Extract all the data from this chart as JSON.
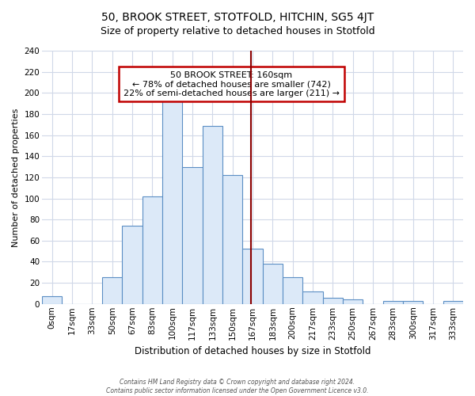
{
  "title": "50, BROOK STREET, STOTFOLD, HITCHIN, SG5 4JT",
  "subtitle": "Size of property relative to detached houses in Stotfold",
  "xlabel": "Distribution of detached houses by size in Stotfold",
  "ylabel": "Number of detached properties",
  "bar_labels": [
    "0sqm",
    "17sqm",
    "33sqm",
    "50sqm",
    "67sqm",
    "83sqm",
    "100sqm",
    "117sqm",
    "133sqm",
    "150sqm",
    "167sqm",
    "183sqm",
    "200sqm",
    "217sqm",
    "233sqm",
    "250sqm",
    "267sqm",
    "283sqm",
    "300sqm",
    "317sqm",
    "333sqm"
  ],
  "bar_values": [
    7,
    0,
    0,
    25,
    74,
    102,
    194,
    130,
    169,
    122,
    52,
    38,
    25,
    12,
    6,
    4,
    0,
    3,
    3,
    0,
    3
  ],
  "bar_color": "#dce9f8",
  "bar_edge_color": "#5b8ec4",
  "vline_color": "#8b0000",
  "vline_x": 9.93,
  "annotation_title": "50 BROOK STREET: 160sqm",
  "annotation_line1": "← 78% of detached houses are smaller (742)",
  "annotation_line2": "22% of semi-detached houses are larger (211) →",
  "annotation_box_facecolor": "#ffffff",
  "annotation_box_edgecolor": "#c00000",
  "ylim": [
    0,
    240
  ],
  "yticks": [
    0,
    20,
    40,
    60,
    80,
    100,
    120,
    140,
    160,
    180,
    200,
    220,
    240
  ],
  "footer_line1": "Contains HM Land Registry data © Crown copyright and database right 2024.",
  "footer_line2": "Contains public sector information licensed under the Open Government Licence v3.0.",
  "bg_color": "#ffffff",
  "plot_bg_color": "#ffffff",
  "grid_color": "#d0d8e8",
  "title_fontsize": 10,
  "subtitle_fontsize": 9,
  "ylabel_fontsize": 8,
  "xlabel_fontsize": 8.5,
  "tick_fontsize": 7.5,
  "annot_fontsize": 8
}
